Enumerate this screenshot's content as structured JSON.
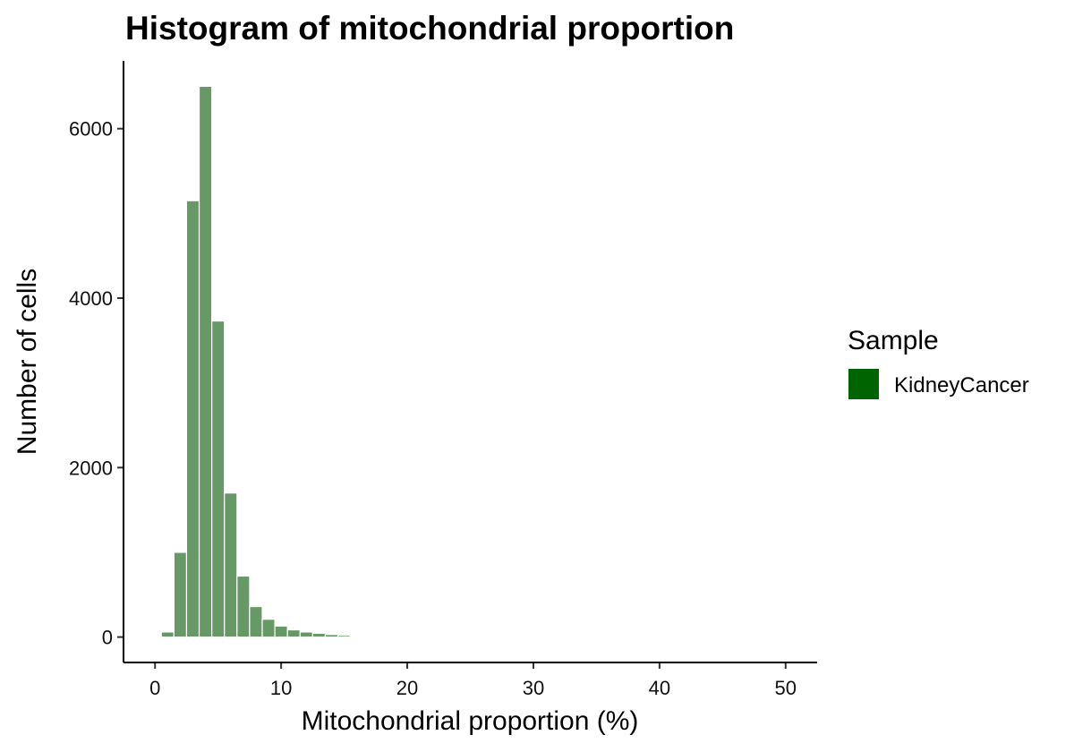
{
  "chart_data": {
    "type": "bar",
    "title": "Histogram of mitochondrial proportion",
    "xlabel": "Mitochondrial proportion (%)",
    "ylabel": "Number of cells",
    "xlim": [
      -2.5,
      52.5
    ],
    "ylim": [
      -300,
      6800
    ],
    "x_ticks": [
      0,
      10,
      20,
      30,
      40,
      50
    ],
    "y_ticks": [
      0,
      2000,
      4000,
      6000
    ],
    "bin_width": 1,
    "bar_color": "#669966",
    "bar_edge_color": "#ffffff",
    "legend": {
      "title": "Sample",
      "entries": [
        {
          "label": "KidneyCancer",
          "color": "#006400"
        }
      ],
      "position": "right"
    },
    "grid": false,
    "series": [
      {
        "name": "KidneyCancer",
        "x": [
          0,
          1,
          2,
          3,
          4,
          5,
          6,
          7,
          8,
          9,
          10,
          11,
          12,
          13,
          14,
          15,
          16,
          17,
          18,
          19,
          20,
          21,
          22,
          23,
          24,
          25,
          26,
          27,
          28,
          29,
          30,
          31,
          32,
          33,
          34,
          35,
          36,
          37,
          38,
          39,
          40,
          41,
          42,
          43,
          44,
          45,
          46,
          47,
          48,
          49,
          50
        ],
        "values": [
          3,
          60,
          1000,
          5150,
          6500,
          3730,
          1700,
          720,
          360,
          210,
          130,
          85,
          60,
          45,
          30,
          20,
          12,
          8,
          5,
          3,
          2,
          2,
          1,
          1,
          2,
          1,
          0,
          1,
          0,
          1,
          1,
          1,
          1,
          1,
          1,
          1,
          1,
          1,
          1,
          1,
          1,
          1,
          1,
          1,
          1,
          1,
          1,
          1,
          1,
          1,
          1
        ]
      }
    ]
  }
}
